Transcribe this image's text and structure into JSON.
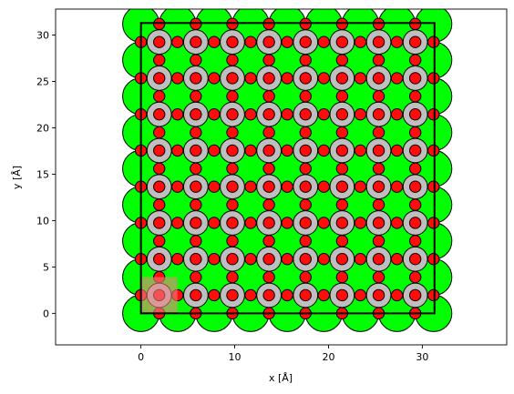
{
  "chart_data": {
    "type": "scatter",
    "title": "",
    "xlabel": "x [Å]",
    "ylabel": "y [Å]",
    "xlim": [
      -9.1,
      39.0
    ],
    "ylim": [
      -3.4,
      32.8
    ],
    "xticks": [
      0,
      10,
      20,
      30
    ],
    "yticks": [
      0,
      5,
      10,
      15,
      20,
      25,
      30
    ],
    "grid": false,
    "legend": "none",
    "cell_box": {
      "x0": 0,
      "y0": 0,
      "x1": 31.3,
      "y1": 31.3
    },
    "highlight_region": {
      "x0": 0,
      "y0": 0,
      "x1": 3.9,
      "y1": 3.9,
      "color": "#f08080"
    },
    "lattice_spacing": 3.9,
    "lattice_repeats": 8,
    "atoms": [
      {
        "species": "Green large",
        "color": "#00ff00",
        "x_offset": 0.0,
        "y_offset": 0.0,
        "radius": 1.95
      },
      {
        "species": "Grey",
        "color": "#bfbfbf",
        "x_offset": 1.95,
        "y_offset": 1.95,
        "radius": 1.3
      },
      {
        "species": "Red (center)",
        "color": "#ff0d0d",
        "x_offset": 1.95,
        "y_offset": 1.95,
        "radius": 0.6
      },
      {
        "species": "Red (x-edge)",
        "color": "#ff0d0d",
        "x_offset": 1.95,
        "y_offset": 0.0,
        "radius": 0.6
      },
      {
        "species": "Red (y-edge)",
        "color": "#ff0d0d",
        "x_offset": 0.0,
        "y_offset": 1.95,
        "radius": 0.6
      }
    ]
  }
}
